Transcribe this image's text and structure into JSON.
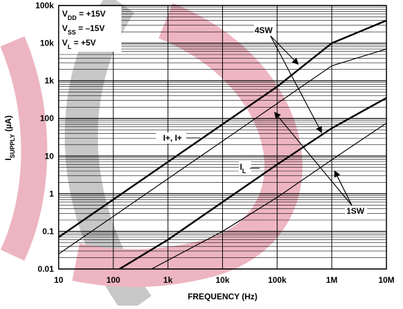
{
  "chart_data": {
    "type": "line",
    "x_label": "FREQUENCY (Hz)",
    "y_label": [
      "I",
      "SUPPLY",
      " (µA)"
    ],
    "xscale": "log",
    "yscale": "log",
    "xlim": [
      10,
      10000000
    ],
    "ylim": [
      0.01,
      100000
    ],
    "xticks": [
      10,
      100,
      {
        "value": 1000,
        "label": "1k"
      },
      {
        "value": 10000,
        "label": "10k"
      },
      {
        "value": 100000,
        "label": "100k"
      },
      {
        "value": 1000000,
        "label": "1M"
      },
      {
        "value": 10000000,
        "label": "10M"
      }
    ],
    "yticks": [
      0.01,
      0.1,
      1,
      10,
      100,
      {
        "value": 1000,
        "label": "1k"
      },
      {
        "value": 10000,
        "label": "10k"
      },
      {
        "value": 100000,
        "label": "100k"
      }
    ],
    "grid": true,
    "y_minor_grid": true,
    "conditions": [
      [
        "V",
        "DD",
        " = +15V"
      ],
      [
        "V",
        "SS",
        " = –15V"
      ],
      [
        "V",
        "L",
        " = +5V"
      ]
    ],
    "annotations": [
      [
        "4SW"
      ],
      [
        "1SW"
      ],
      [
        "I+, I+"
      ],
      [
        "I",
        "L"
      ]
    ],
    "series": [
      {
        "color": "#000000",
        "line_width": 2.5,
        "x": [
          10,
          100,
          1000,
          10000,
          100000,
          1000000,
          10000000
        ],
        "values": [
          0.07,
          0.7,
          7,
          70,
          700,
          10000,
          40000
        ]
      },
      {
        "color": "#000000",
        "line_width": 1.2,
        "x": [
          10,
          100,
          1000,
          10000,
          100000,
          1000000,
          10000000
        ],
        "values": [
          0.025,
          0.25,
          2.5,
          25,
          250,
          2500,
          7000
        ]
      },
      {
        "color": "#000000",
        "line_width": 2.5,
        "x": [
          130,
          1000,
          10000,
          100000,
          1000000,
          10000000
        ],
        "values": [
          0.01,
          0.06,
          0.6,
          6,
          55,
          350
        ]
      },
      {
        "color": "#000000",
        "line_width": 1.2,
        "x": [
          500,
          10000,
          100000,
          1000000,
          10000000
        ],
        "values": [
          0.01,
          0.1,
          0.8,
          8,
          75
        ]
      }
    ]
  }
}
